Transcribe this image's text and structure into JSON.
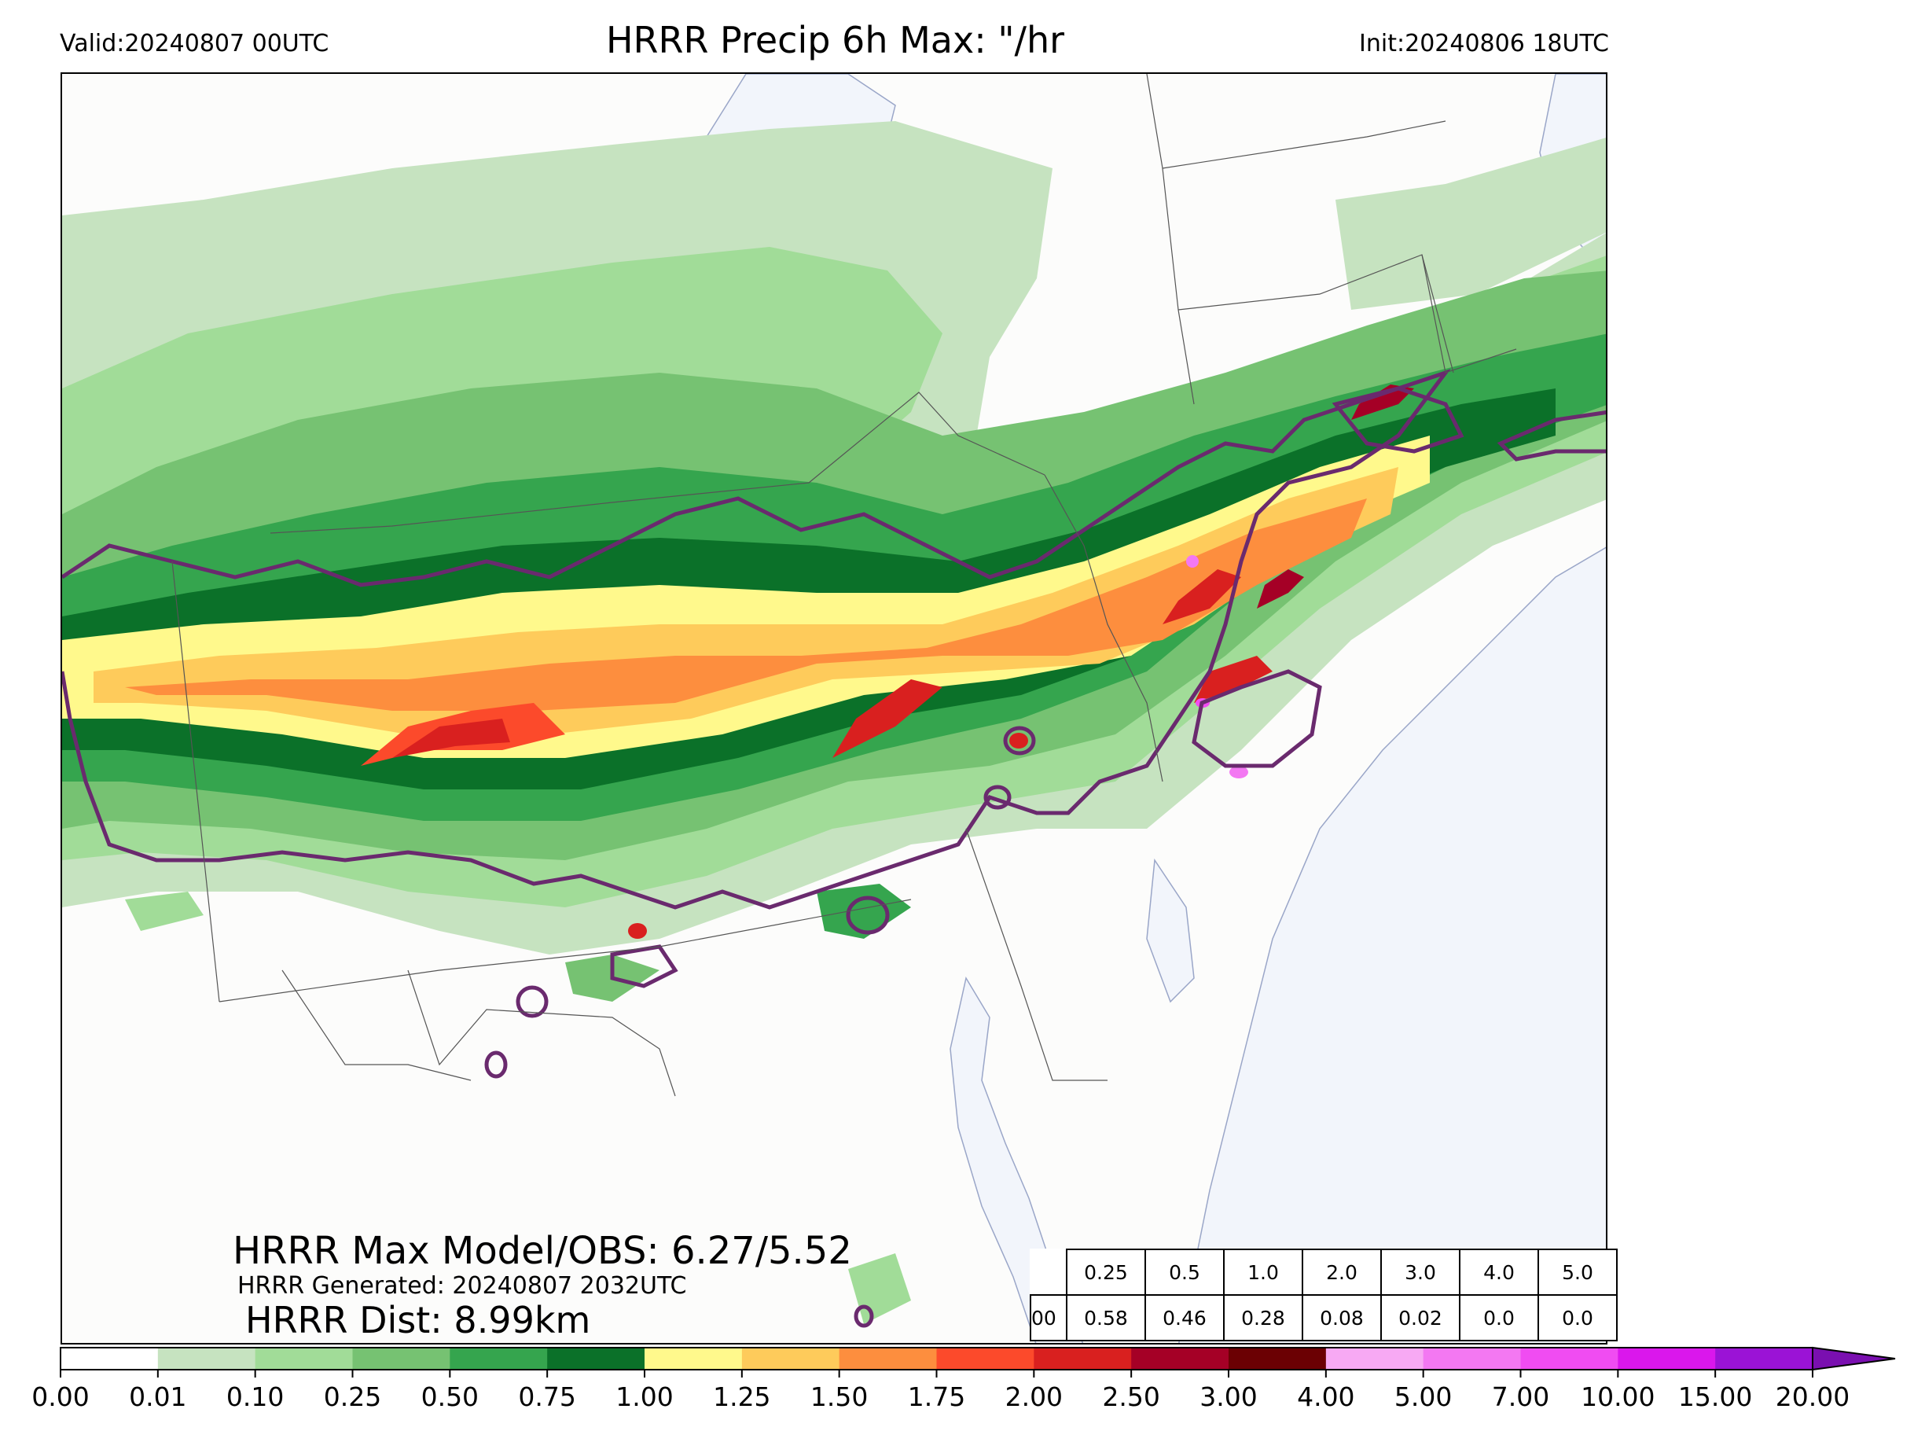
{
  "header": {
    "valid": "Valid:20240807 00UTC",
    "title": "HRRR Precip 6h Max: \"/hr",
    "init": "Init:20240806 18UTC"
  },
  "annotations": {
    "max_model_obs": "HRRR Max Model/OBS: 6.27/5.52",
    "generated": "HRRR Generated: 20240807 2032UTC",
    "dist": "HRRR Dist: 8.99km"
  },
  "threshold_table": {
    "thresholds": [
      "0.25",
      "0.5",
      "1.0",
      "2.0",
      "3.0",
      "4.0",
      "5.0"
    ],
    "row_label": "00",
    "values": [
      "0.58",
      "0.46",
      "0.28",
      "0.08",
      "0.02",
      "0.0",
      "0.0"
    ]
  },
  "colorbar": {
    "ticks": [
      "0.00",
      "0.01",
      "0.10",
      "0.25",
      "0.50",
      "0.75",
      "1.00",
      "1.25",
      "1.50",
      "1.75",
      "2.00",
      "2.50",
      "3.00",
      "4.00",
      "5.00",
      "7.00",
      "10.00",
      "15.00",
      "20.00"
    ],
    "colors": [
      "#ffffff",
      "#c6e3c0",
      "#a1dc98",
      "#76c272",
      "#35a54e",
      "#0b7129",
      "#fff98c",
      "#fecb5b",
      "#fd8e3e",
      "#fc4a2b",
      "#d9201f",
      "#a50026",
      "#6b0003",
      "#f7a9f3",
      "#f378f2",
      "#f04cf2",
      "#da17ec",
      "#9b13d6"
    ],
    "extend_color": "#7a0fb0"
  },
  "map": {
    "land_color": "#fcfcfb",
    "water_color": "#f2f5fb",
    "contour_color": "#6a2a6e"
  }
}
